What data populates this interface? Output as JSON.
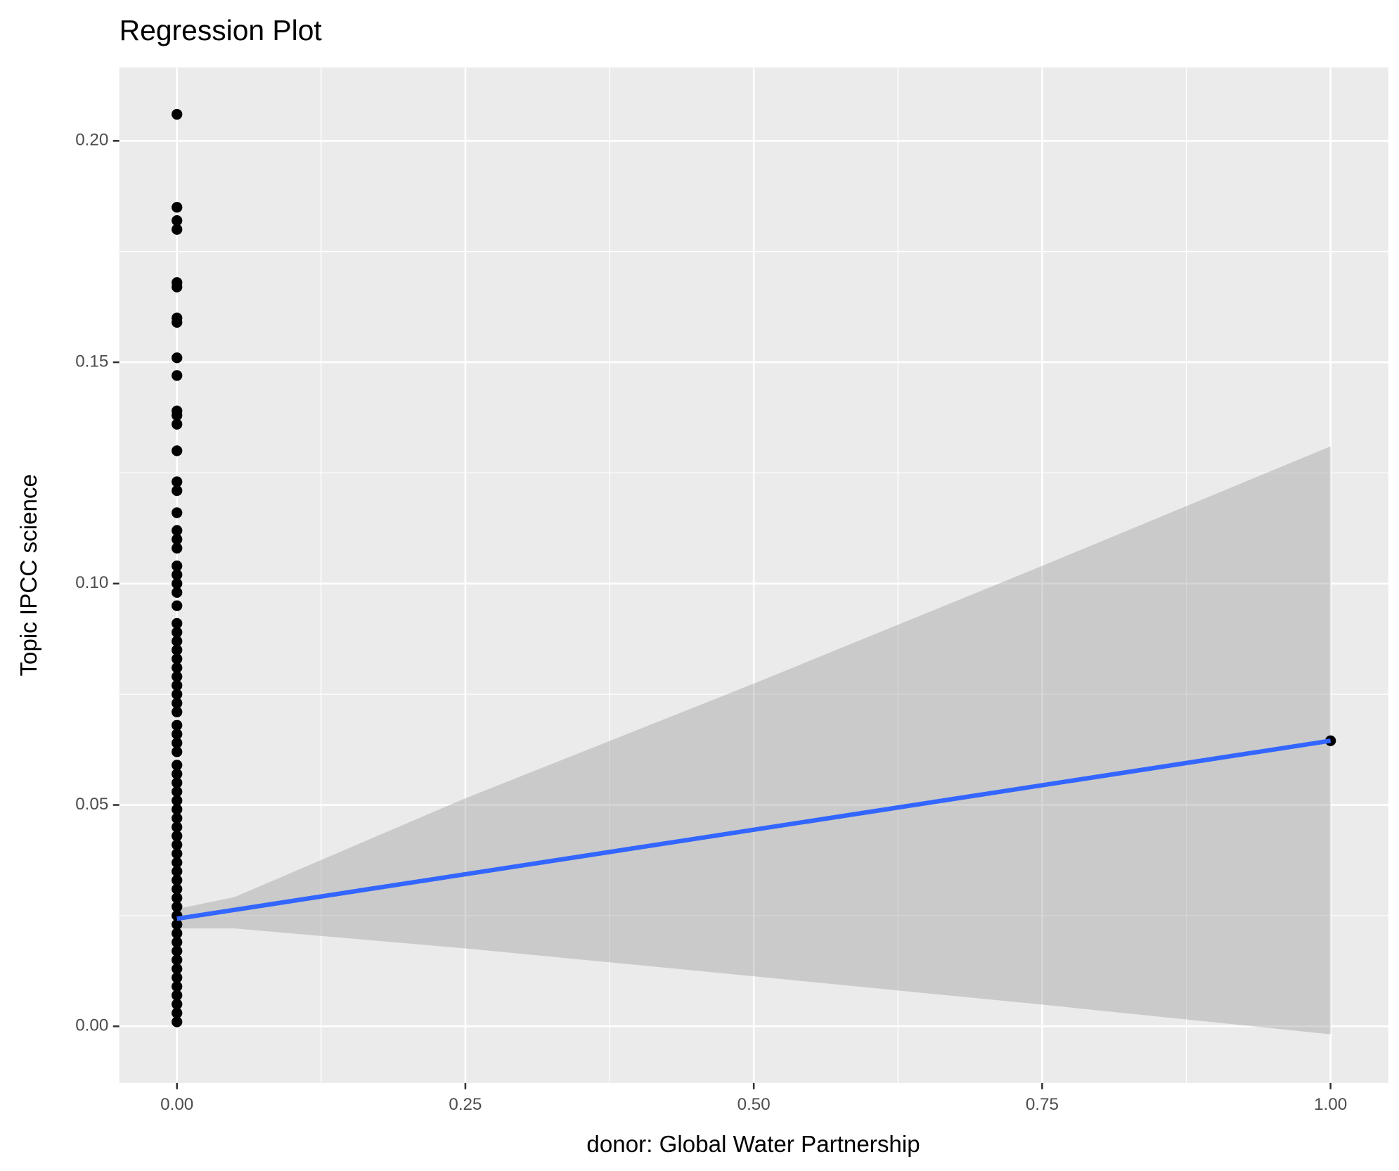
{
  "chart_data": {
    "type": "scatter",
    "title": "Regression Plot",
    "x_label": "donor: Global Water Partnership",
    "y_label": "Topic IPCC science",
    "xlim": [
      -0.05,
      1.05
    ],
    "ylim": [
      -0.0128,
      0.2166
    ],
    "xticks": [
      {
        "value": 0,
        "label": "0.00"
      },
      {
        "value": 0.25,
        "label": "0.25"
      },
      {
        "value": 0.5,
        "label": "0.50"
      },
      {
        "value": 0.75,
        "label": "0.75"
      },
      {
        "value": 1,
        "label": "1.00"
      }
    ],
    "yticks": [
      {
        "value": 0,
        "label": "0.00"
      },
      {
        "value": 0.05,
        "label": "0.05"
      },
      {
        "value": 0.1,
        "label": "0.10"
      },
      {
        "value": 0.15,
        "label": "0.15"
      },
      {
        "value": 0.2,
        "label": "0.20"
      }
    ],
    "x_minor": [
      0.125,
      0.375,
      0.625,
      0.875
    ],
    "y_minor": [
      0.025,
      0.075,
      0.125,
      0.175
    ],
    "grid": true,
    "point_color": "#000000",
    "x": [
      0,
      0,
      0,
      0,
      0,
      0,
      0,
      0,
      0,
      0,
      0,
      0,
      0,
      0,
      0,
      0,
      0,
      0,
      0,
      0,
      0,
      0,
      0,
      0,
      0,
      0,
      0,
      0,
      0,
      0,
      0,
      0,
      0,
      0,
      0,
      0,
      0,
      0,
      0,
      0,
      0,
      0,
      0,
      0,
      0,
      0,
      0,
      0,
      0,
      0,
      0,
      0,
      0,
      0,
      0,
      0,
      0,
      0,
      0,
      0,
      0,
      0,
      0,
      0,
      0,
      0,
      0,
      0,
      0,
      0,
      1
    ],
    "y": [
      0.206,
      0.185,
      0.182,
      0.18,
      0.168,
      0.167,
      0.16,
      0.159,
      0.151,
      0.147,
      0.139,
      0.138,
      0.136,
      0.13,
      0.123,
      0.121,
      0.116,
      0.112,
      0.11,
      0.108,
      0.104,
      0.102,
      0.1,
      0.098,
      0.095,
      0.091,
      0.089,
      0.087,
      0.085,
      0.083,
      0.081,
      0.079,
      0.077,
      0.075,
      0.073,
      0.071,
      0.068,
      0.066,
      0.064,
      0.062,
      0.059,
      0.057,
      0.055,
      0.053,
      0.051,
      0.049,
      0.047,
      0.045,
      0.043,
      0.041,
      0.039,
      0.037,
      0.035,
      0.033,
      0.031,
      0.029,
      0.027,
      0.025,
      0.023,
      0.021,
      0.019,
      0.017,
      0.015,
      0.013,
      0.011,
      0.009,
      0.007,
      0.005,
      0.003,
      0.001,
      0.0645
    ],
    "fit": {
      "color": "#3366ff",
      "x": [
        0,
        1
      ],
      "y": [
        0.0243,
        0.0645
      ]
    },
    "ribbon": {
      "color": "#999999",
      "x": [
        0,
        0.05,
        0.25,
        0.5,
        0.75,
        1
      ],
      "upper": [
        0.0265,
        0.0292,
        0.0515,
        0.0774,
        0.104,
        0.131
      ],
      "lower": [
        0.0221,
        0.0221,
        0.0176,
        0.0113,
        0.0049,
        -0.0018
      ]
    }
  }
}
